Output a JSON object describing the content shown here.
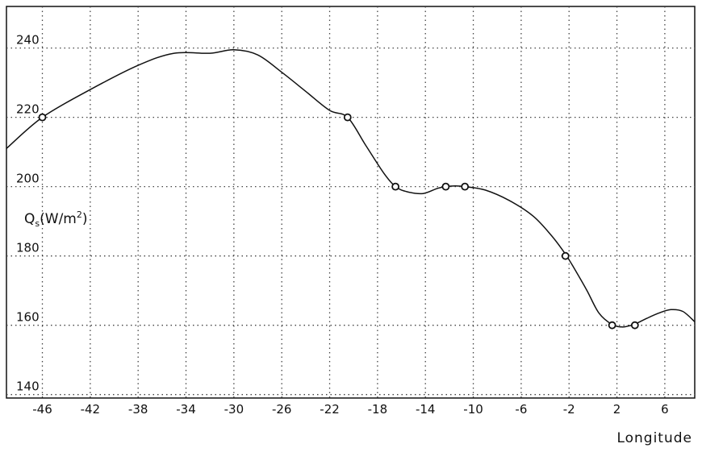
{
  "chart_data": {
    "type": "line",
    "title": "",
    "xlabel": "Longitude",
    "ylabel": "Qs(W/m2)",
    "ylabel_main": "Q",
    "ylabel_sub": "s",
    "ylabel_unit": "(W/m",
    "ylabel_sup": "2",
    "ylabel_close": ")",
    "xlim": [
      -49,
      8.5
    ],
    "ylim": [
      139,
      252
    ],
    "grid": true,
    "x_ticks": [
      "-46",
      "-42",
      "-38",
      "-34",
      "-30",
      "-26",
      "-22",
      "-18",
      "-14",
      "-10",
      "-6",
      "-2",
      "2",
      "6"
    ],
    "y_ticks": [
      "140",
      "160",
      "180",
      "200",
      "220",
      "240"
    ],
    "series": [
      {
        "curve": [
          [
            -49,
            211
          ],
          [
            -46,
            220
          ],
          [
            -42,
            228
          ],
          [
            -38,
            235
          ],
          [
            -35,
            238.5
          ],
          [
            -32,
            238.5
          ],
          [
            -30,
            239.5
          ],
          [
            -28,
            238
          ],
          [
            -26,
            233
          ],
          [
            -24,
            227.5
          ],
          [
            -22,
            222
          ],
          [
            -20.5,
            220
          ],
          [
            -19,
            212
          ],
          [
            -17.5,
            204
          ],
          [
            -16.5,
            200
          ],
          [
            -15.5,
            198.5
          ],
          [
            -14.2,
            198
          ],
          [
            -13,
            199.5
          ],
          [
            -12.3,
            200
          ],
          [
            -11.5,
            200.2
          ],
          [
            -10.7,
            200
          ],
          [
            -9,
            199
          ],
          [
            -7,
            196
          ],
          [
            -5,
            191.5
          ],
          [
            -3.5,
            186
          ],
          [
            -2.3,
            180.5
          ],
          [
            -1.5,
            176
          ],
          [
            -0.5,
            170
          ],
          [
            0.5,
            163.5
          ],
          [
            1.6,
            160.2
          ],
          [
            2.4,
            159.5
          ],
          [
            3,
            159.8
          ],
          [
            3.5,
            160.3
          ],
          [
            4.5,
            162
          ],
          [
            5.5,
            163.5
          ],
          [
            6.5,
            164.5
          ],
          [
            7.5,
            164
          ],
          [
            8.5,
            161
          ]
        ],
        "markers": [
          [
            -46,
            220
          ],
          [
            -20.5,
            220
          ],
          [
            -16.5,
            200
          ],
          [
            -12.3,
            200
          ],
          [
            -10.7,
            200
          ],
          [
            -2.3,
            180
          ],
          [
            1.6,
            160
          ],
          [
            3.5,
            160
          ]
        ]
      }
    ]
  }
}
